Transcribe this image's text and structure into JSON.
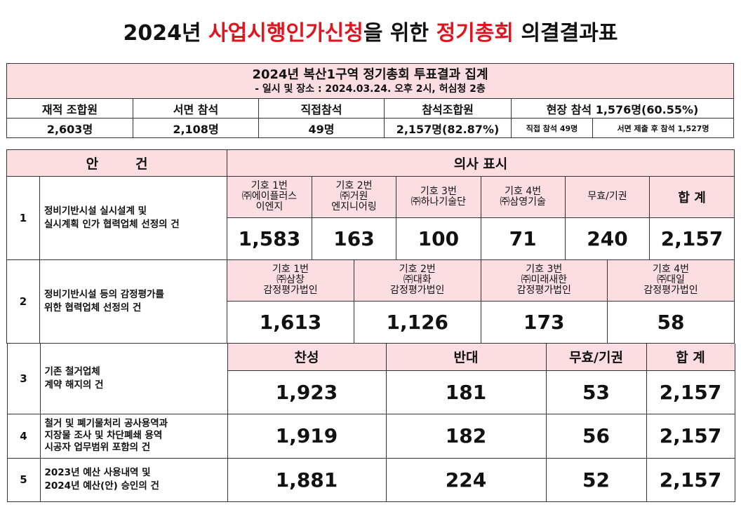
{
  "title": {
    "part1": "2024년 ",
    "part2": "사업시행인가신청",
    "part3": "을 위한 ",
    "part4": "정기총회",
    "part5": " 의결결과표"
  },
  "summary": {
    "heading": "2024년 복산1구역 정기총회 투표결과 집계",
    "subheading": "- 일시 및 장소 : 2024.03.24. 오후 2시, 허심청 2층",
    "headers": [
      "재적 조합원",
      "서면 참석",
      "직접참석",
      "참석조합원",
      "현장 참석 1,576명(60.55%)"
    ],
    "values": [
      "2,603명",
      "2,108명",
      "49명",
      "2,157명(82.87%)"
    ],
    "onsite_direct": "직접 참석 49명",
    "onsite_written": "서면 제출 후 참석 1,527명"
  },
  "table": {
    "agenda_header": "안        건",
    "vote_header": "의사 표시",
    "items": [
      {
        "num": "1",
        "text": "정비기반시설 실시설계 및\n실시계획 인가 협력업체 선정의 건",
        "labels": [
          "기호 1번\n㈜에이플러스\n이엔지",
          "기호 2번\n㈜거원\n엔지니어링",
          "기호 3번\n㈜하나기술단",
          "기호 4번\n㈜삼영기술",
          "무효/기권",
          "합 계"
        ],
        "values": [
          "1,583",
          "163",
          "100",
          "71",
          "240",
          "2,157"
        ]
      },
      {
        "num": "2",
        "text": "정비기반시설 등의 감정평가를\n위한 협력업체 선정의 건",
        "labels": [
          "기호 1번\n㈜삼창\n감정평가법인",
          "기호 2번\n㈜대화\n감정평가법인",
          "기호 3번\n㈜미래새한\n감정평가법인",
          "기호 4번\n㈜대일\n감정평가법인"
        ],
        "values": [
          "1,613",
          "1,126",
          "173",
          "58"
        ]
      },
      {
        "num": "3",
        "text": "기존 철거업체\n계약 해지의 건",
        "values": [
          "1,923",
          "181",
          "53",
          "2,157"
        ]
      },
      {
        "num": "4",
        "text": "철거 및 폐기물처리 공사용역과\n지장물 조사 및 차단폐쇄 용역\n시공자 업무범위 포함의 건",
        "values": [
          "1,919",
          "182",
          "56",
          "2,157"
        ]
      },
      {
        "num": "5",
        "text": "2023년 예산 사용내역 및\n2024년 예산(안) 승인의 건",
        "values": [
          "1,881",
          "224",
          "52",
          "2,157"
        ]
      }
    ],
    "col_headers_3": [
      "찬성",
      "반대",
      "무효/기권",
      "합 계"
    ]
  }
}
